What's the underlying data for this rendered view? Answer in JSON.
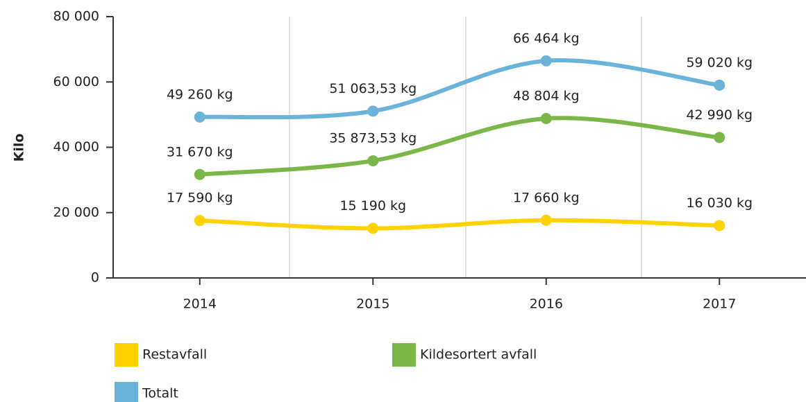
{
  "chart_data": {
    "type": "line",
    "y_label": "Kilo",
    "categories": [
      "2014",
      "2015",
      "2016",
      "2017"
    ],
    "series": [
      {
        "name": "Restavfall",
        "color": "#ffd200",
        "values": [
          17590,
          15190,
          17660,
          16030
        ],
        "value_labels": [
          "17 590 kg",
          "15 190 kg",
          "17 660 kg",
          "16 030 kg"
        ]
      },
      {
        "name": "Kildesortert avfall",
        "color": "#7ab648",
        "values": [
          31670,
          35873.53,
          48804,
          42990
        ],
        "value_labels": [
          "31 670 kg",
          "35 873,53 kg",
          "48 804 kg",
          "42 990 kg"
        ]
      },
      {
        "name": "Totalt",
        "color": "#6ab4dc",
        "values": [
          49260,
          51063.53,
          66464,
          59020
        ],
        "value_labels": [
          "49 260 kg",
          "51 063,53 kg",
          "66 464 kg",
          "59 020 kg"
        ]
      }
    ],
    "ylim": [
      0,
      80000
    ],
    "yticks": [
      {
        "value": 0,
        "label": "0"
      },
      {
        "value": 20000,
        "label": "20 000"
      },
      {
        "value": 40000,
        "label": "40 000"
      },
      {
        "value": 60000,
        "label": "60 000"
      },
      {
        "value": 80000,
        "label": "80 000"
      }
    ],
    "smooth": true,
    "legend": "bottom"
  }
}
